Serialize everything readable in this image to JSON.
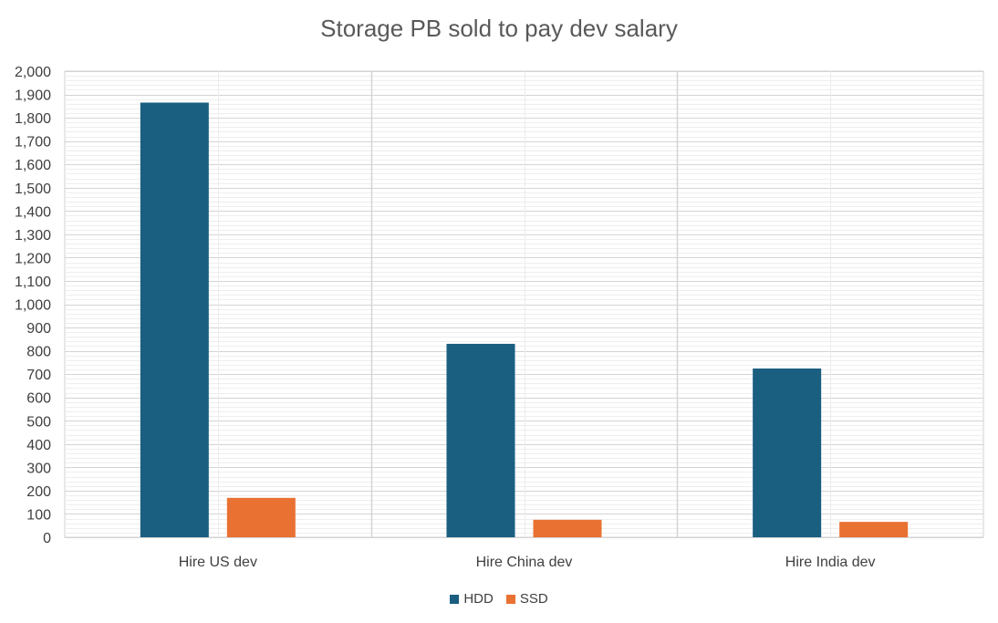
{
  "chart_data": {
    "type": "bar",
    "title": "Storage PB sold to pay dev salary",
    "xlabel": "",
    "ylabel": "",
    "categories": [
      "Hire US dev",
      "Hire China dev",
      "Hire India dev"
    ],
    "series": [
      {
        "name": "HDD",
        "color": "#1a5e80",
        "values": [
          1865,
          830,
          724
        ]
      },
      {
        "name": "SSD",
        "color": "#e97132",
        "values": [
          169,
          75,
          66
        ]
      }
    ],
    "ylim": [
      0,
      2000
    ],
    "ytick_step": 100,
    "ytick_labels": [
      "0",
      "100",
      "200",
      "300",
      "400",
      "500",
      "600",
      "700",
      "800",
      "900",
      "1,000",
      "1,100",
      "1,200",
      "1,300",
      "1,400",
      "1,500",
      "1,600",
      "1,700",
      "1,800",
      "1,900",
      "2,000"
    ],
    "grid": true,
    "legend_position": "bottom"
  }
}
